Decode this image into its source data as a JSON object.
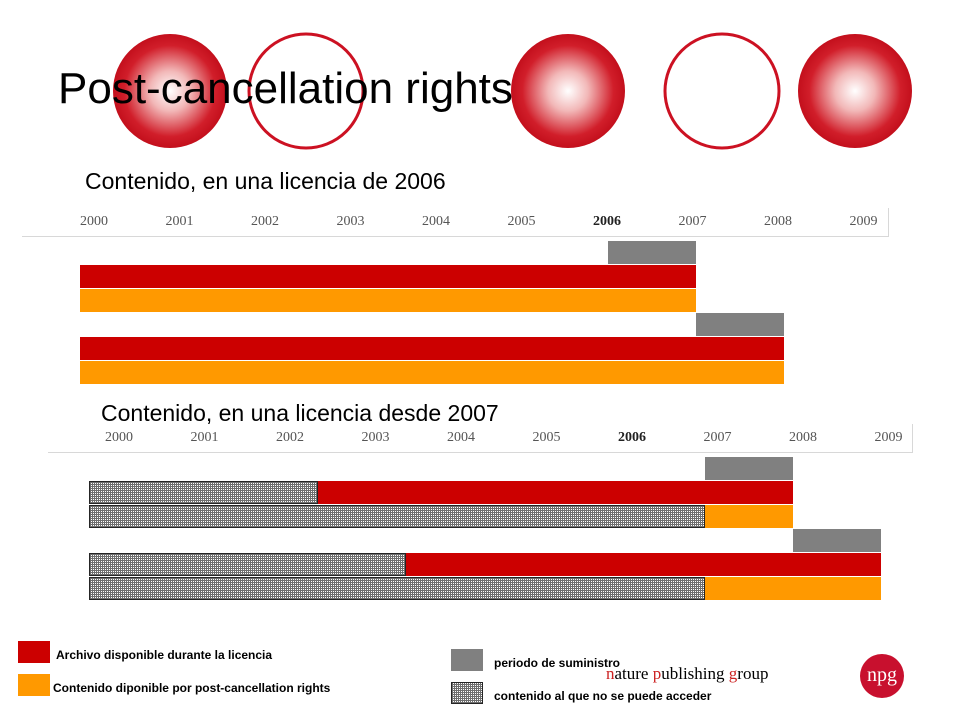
{
  "slide": {
    "title": "Post-cancellation rights",
    "section1_title": "Contenido, en una licencia de 2006",
    "section2_title": "Contenido, en una licencia desde 2007"
  },
  "colors": {
    "archive": "#cc0000",
    "post_cancellation": "#ff9900",
    "supply_period": "#808080",
    "inaccessible": "hatched"
  },
  "chart_data": [
    {
      "type": "gantt",
      "title": "Contenido, en una licencia de 2006",
      "years": [
        "2000",
        "2001",
        "2002",
        "2003",
        "2004",
        "2005",
        "2006",
        "2007",
        "2008",
        "2009"
      ],
      "highlight_year": "2006",
      "rows": [
        {
          "kind": "supply",
          "start": 2006.0,
          "end": 2007.0
        },
        {
          "kind": "archive",
          "start": 2000.0,
          "end": 2007.0
        },
        {
          "kind": "post",
          "start": 2000.0,
          "end": 2007.0
        },
        {
          "kind": "supply",
          "start": 2007.0,
          "end": 2008.0
        },
        {
          "kind": "archive",
          "start": 2000.0,
          "end": 2008.0
        },
        {
          "kind": "post",
          "start": 2000.0,
          "end": 2008.0
        }
      ]
    },
    {
      "type": "gantt",
      "title": "Contenido, en una licencia desde 2007",
      "years": [
        "2000",
        "2001",
        "2002",
        "2003",
        "2004",
        "2005",
        "2006",
        "2007",
        "2008",
        "2009"
      ],
      "highlight_year": "2006",
      "rows": [
        {
          "kind": "supply",
          "start": 2007.0,
          "end": 2008.0
        },
        {
          "segments": [
            {
              "kind": "blocked",
              "start": 2000.0,
              "end": 2002.6
            },
            {
              "kind": "archive",
              "start": 2002.6,
              "end": 2008.0
            }
          ]
        },
        {
          "segments": [
            {
              "kind": "blocked",
              "start": 2000.0,
              "end": 2007.0
            },
            {
              "kind": "post",
              "start": 2007.0,
              "end": 2008.0
            }
          ]
        },
        {
          "kind": "supply",
          "start": 2008.0,
          "end": 2009.0
        },
        {
          "segments": [
            {
              "kind": "blocked",
              "start": 2000.0,
              "end": 2003.6
            },
            {
              "kind": "archive",
              "start": 2003.6,
              "end": 2009.0
            }
          ]
        },
        {
          "segments": [
            {
              "kind": "blocked",
              "start": 2000.0,
              "end": 2007.0
            },
            {
              "kind": "post",
              "start": 2007.0,
              "end": 2009.0
            }
          ]
        }
      ]
    }
  ],
  "legend": {
    "archive": "Archivo disponible durante la licencia",
    "post": "Contenido diponible por post-cancellation rights",
    "supply": "periodo de suministro",
    "blocked": "contenido al que no se puede acceder"
  },
  "brand": {
    "text_prefix": "",
    "n1": "n",
    "t1": "ature ",
    "n2": "p",
    "t2": "ublishing ",
    "n3": "g",
    "t3": "roup",
    "logo": "npg"
  }
}
